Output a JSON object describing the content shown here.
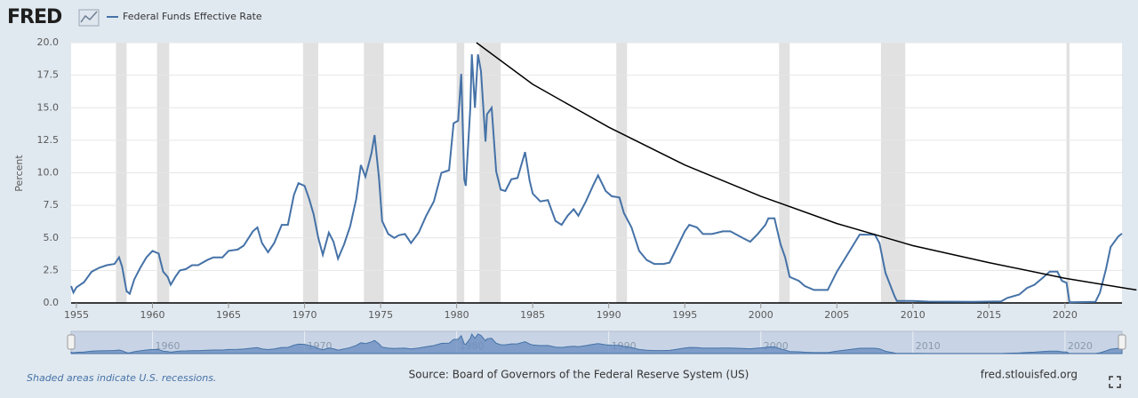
{
  "chart_data": {
    "type": "line",
    "logo": "FRED",
    "ylabel": "Percent",
    "footnote": "Shaded areas indicate U.S. recessions.",
    "source": "Source: Board of Governors of the Federal Reserve System (US)",
    "site": "fred.stlouisfed.org",
    "xlim": [
      1954.65,
      2023.75
    ],
    "ylim": [
      0,
      20
    ],
    "xticks": [
      1955,
      1960,
      1965,
      1970,
      1975,
      1980,
      1985,
      1990,
      1995,
      2000,
      2005,
      2010,
      2015,
      2020
    ],
    "yticks": [
      {
        "value": 0,
        "label": "0.0"
      },
      2.5,
      {
        "value": 5,
        "label": "5.0"
      },
      7.5,
      {
        "value": 10,
        "label": "10.0"
      },
      12.5,
      {
        "value": 15,
        "label": "15.0"
      },
      17.5,
      {
        "value": 20,
        "label": "20.0"
      }
    ],
    "grid": true,
    "navigator_ticks": [
      1960,
      1970,
      1980,
      1990,
      2000,
      2010,
      2020
    ],
    "recessions": [
      [
        1957.6,
        1958.3
      ],
      [
        1960.3,
        1961.1
      ],
      [
        1969.9,
        1970.9
      ],
      [
        1973.9,
        1975.2
      ],
      [
        1980.0,
        1980.5
      ],
      [
        1981.5,
        1982.9
      ],
      [
        1990.5,
        1991.2
      ],
      [
        2001.2,
        2001.9
      ],
      [
        2007.9,
        2009.5
      ],
      [
        2020.1,
        2020.3
      ]
    ],
    "series": [
      {
        "name": "Federal Funds Effective Rate",
        "color": "#4572a7",
        "x": [
          1954.65,
          1954.8,
          1955.0,
          1955.5,
          1956.0,
          1956.5,
          1957.0,
          1957.5,
          1957.8,
          1958.0,
          1958.3,
          1958.5,
          1958.8,
          1959.2,
          1959.6,
          1960.0,
          1960.4,
          1960.7,
          1961.0,
          1961.2,
          1961.5,
          1961.8,
          1962.2,
          1962.6,
          1963.0,
          1963.6,
          1964.0,
          1964.6,
          1965.0,
          1965.6,
          1966.0,
          1966.6,
          1966.9,
          1967.2,
          1967.6,
          1968.0,
          1968.5,
          1968.9,
          1969.3,
          1969.6,
          1970.0,
          1970.3,
          1970.6,
          1970.9,
          1971.2,
          1971.6,
          1971.9,
          1972.2,
          1972.6,
          1973.0,
          1973.4,
          1973.7,
          1974.0,
          1974.4,
          1974.6,
          1974.9,
          1975.1,
          1975.5,
          1975.9,
          1976.2,
          1976.6,
          1977.0,
          1977.5,
          1978.0,
          1978.5,
          1979.0,
          1979.5,
          1979.8,
          1980.1,
          1980.3,
          1980.5,
          1980.6,
          1980.9,
          1981.0,
          1981.2,
          1981.4,
          1981.6,
          1981.9,
          1982.0,
          1982.3,
          1982.6,
          1982.9,
          1983.2,
          1983.6,
          1984.0,
          1984.5,
          1984.8,
          1985.0,
          1985.5,
          1986.0,
          1986.5,
          1986.9,
          1987.3,
          1987.7,
          1988.0,
          1988.5,
          1989.0,
          1989.3,
          1989.8,
          1990.2,
          1990.7,
          1991.0,
          1991.5,
          1992.0,
          1992.5,
          1993.0,
          1993.6,
          1994.0,
          1994.5,
          1995.0,
          1995.3,
          1995.8,
          1996.2,
          1996.8,
          1997.5,
          1998.0,
          1998.8,
          1999.3,
          1999.8,
          2000.3,
          2000.5,
          2000.9,
          2001.3,
          2001.6,
          2001.9,
          2002.5,
          2002.9,
          2003.5,
          2004.4,
          2005.0,
          2006.0,
          2006.5,
          2007.5,
          2007.8,
          2008.2,
          2008.8,
          2008.95,
          2010.0,
          2011.0,
          2014.0,
          2015.8,
          2016.2,
          2017.0,
          2017.5,
          2018.0,
          2018.5,
          2019.0,
          2019.5,
          2019.8,
          2020.1,
          2020.3,
          2022.0,
          2022.3,
          2022.7,
          2023.0,
          2023.5,
          2023.75
        ],
        "values": [
          1.3,
          0.8,
          1.2,
          1.6,
          2.4,
          2.7,
          2.9,
          3.0,
          3.5,
          2.8,
          0.9,
          0.7,
          1.8,
          2.7,
          3.5,
          4.0,
          3.8,
          2.4,
          2.0,
          1.4,
          2.0,
          2.5,
          2.6,
          2.9,
          2.9,
          3.3,
          3.5,
          3.5,
          4.0,
          4.1,
          4.4,
          5.5,
          5.8,
          4.6,
          3.9,
          4.6,
          6.0,
          6.0,
          8.3,
          9.2,
          9.0,
          8.0,
          6.8,
          5.0,
          3.7,
          5.4,
          4.7,
          3.4,
          4.5,
          5.9,
          8.0,
          10.6,
          9.7,
          11.5,
          12.9,
          9.5,
          6.3,
          5.3,
          5.0,
          5.2,
          5.3,
          4.6,
          5.4,
          6.7,
          7.8,
          10.0,
          10.2,
          13.8,
          14.0,
          17.6,
          9.5,
          9.0,
          15.0,
          19.1,
          15.0,
          19.1,
          17.8,
          12.4,
          14.5,
          15.0,
          10.1,
          8.7,
          8.6,
          9.5,
          9.6,
          11.6,
          9.4,
          8.4,
          7.8,
          7.9,
          6.3,
          6.0,
          6.7,
          7.2,
          6.7,
          7.8,
          9.1,
          9.8,
          8.6,
          8.2,
          8.1,
          6.9,
          5.8,
          4.0,
          3.3,
          3.0,
          3.0,
          3.1,
          4.3,
          5.5,
          6.0,
          5.8,
          5.3,
          5.3,
          5.5,
          5.5,
          5.0,
          4.7,
          5.3,
          6.0,
          6.5,
          6.5,
          4.5,
          3.5,
          2.0,
          1.7,
          1.3,
          1.0,
          1.0,
          2.4,
          4.3,
          5.25,
          5.25,
          4.6,
          2.3,
          0.5,
          0.15,
          0.15,
          0.1,
          0.09,
          0.12,
          0.38,
          0.65,
          1.15,
          1.4,
          1.9,
          2.4,
          2.4,
          1.7,
          1.55,
          0.05,
          0.08,
          0.8,
          2.6,
          4.3,
          5.1,
          5.33
        ]
      }
    ],
    "overlay_curve": {
      "color": "#000000",
      "x": [
        1981.3,
        1985,
        1990,
        1995,
        2000,
        2005,
        2010,
        2015,
        2020,
        2024.7
      ],
      "values": [
        20,
        16.8,
        13.5,
        10.6,
        8.2,
        6.1,
        4.4,
        3.1,
        1.9,
        1.0
      ]
    }
  }
}
